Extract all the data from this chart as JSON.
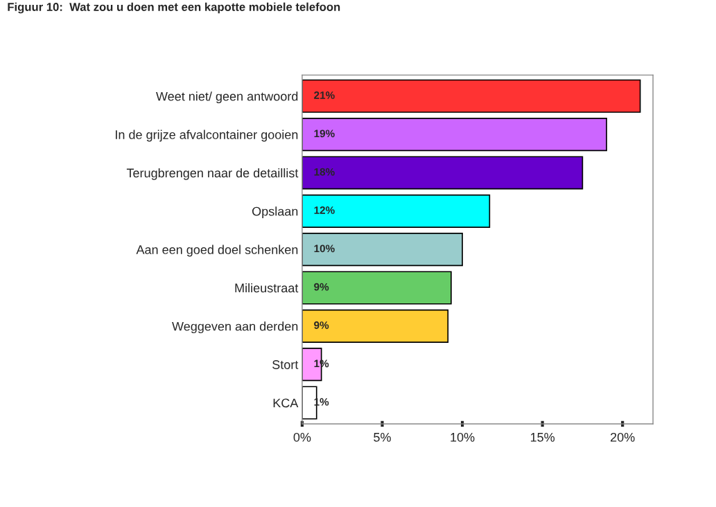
{
  "chart_data": {
    "type": "bar",
    "orientation": "horizontal",
    "title": "Figuur 10:  Wat zou u doen met een kapotte mobiele telefoon",
    "categories": [
      "Weet niet/ geen antwoord",
      "In de grijze afvalcontainer gooien",
      "Terugbrengen naar de detaillist",
      "Opslaan",
      "Aan een goed doel schenken",
      "Milieustraat",
      "Weggeven aan derden",
      "Stort",
      "KCA"
    ],
    "values": [
      21.1,
      19.0,
      17.5,
      11.7,
      10.0,
      9.3,
      9.1,
      1.2,
      0.9
    ],
    "value_labels": [
      "21%",
      "19%",
      "18%",
      "12%",
      "10%",
      "9%",
      "9%",
      "1%",
      "1%"
    ],
    "colors": [
      "#ff3333",
      "#cc66ff",
      "#6600cc",
      "#00ffff",
      "#99cccc",
      "#66cc66",
      "#ffcc33",
      "#ff99ff",
      "#ffffff"
    ],
    "xlim": [
      0,
      21.9
    ],
    "xticks": [
      {
        "value": 0,
        "label": "0%"
      },
      {
        "value": 5,
        "label": "5%"
      },
      {
        "value": 10,
        "label": "10%"
      },
      {
        "value": 15,
        "label": "15%"
      },
      {
        "value": 20,
        "label": "20%"
      }
    ],
    "grid": false,
    "legend": false
  }
}
